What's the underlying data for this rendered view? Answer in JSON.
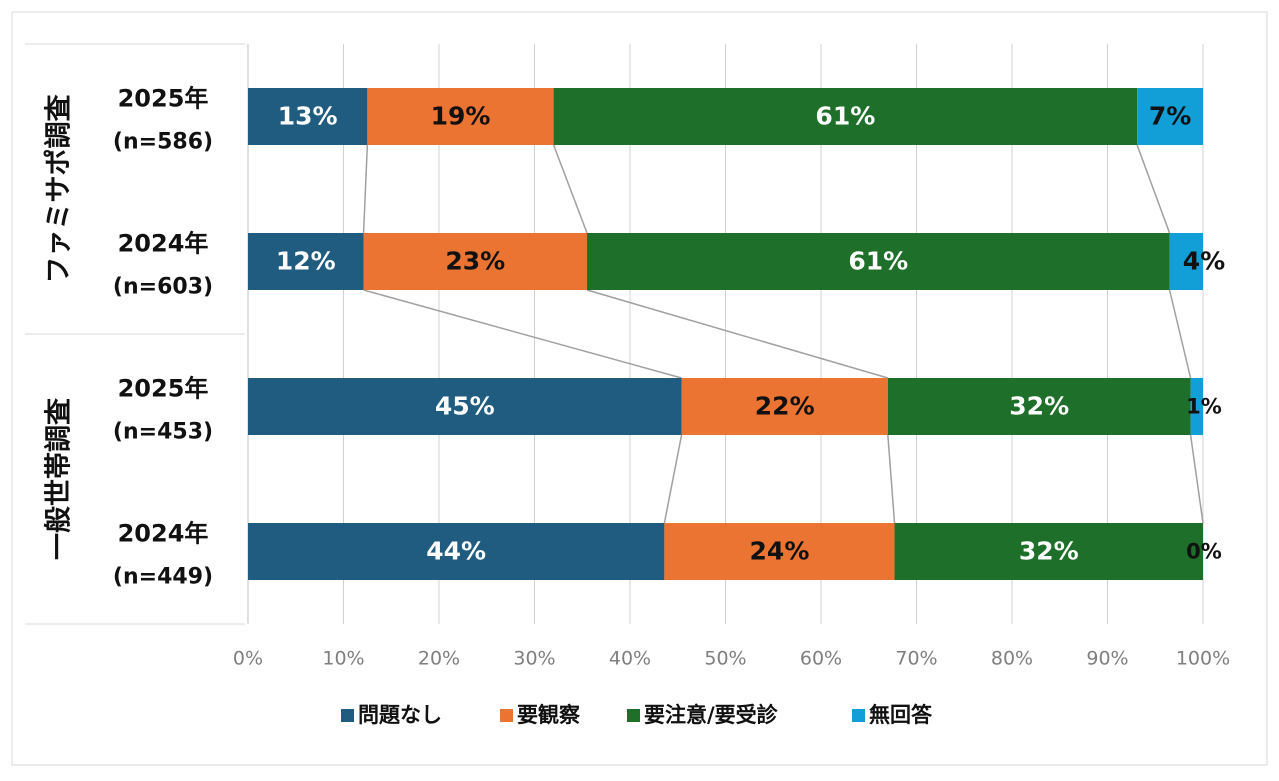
{
  "chart_data": {
    "type": "bar",
    "orientation": "horizontal",
    "stacked": true,
    "percent_stacked": true,
    "xlim": [
      0,
      100
    ],
    "x_ticks": [
      "0%",
      "10%",
      "20%",
      "30%",
      "40%",
      "50%",
      "60%",
      "70%",
      "80%",
      "90%",
      "100%"
    ],
    "grid": true,
    "legend_position": "bottom",
    "groups": [
      {
        "label": "ファミサポ調査"
      },
      {
        "label": "一般世帯調査"
      }
    ],
    "categories": [
      {
        "year": "2025年",
        "n": "(n=586)"
      },
      {
        "year": "2024年",
        "n": "(n=603)"
      },
      {
        "year": "2025年",
        "n": "(n=453)"
      },
      {
        "year": "2024年",
        "n": "(n=449)"
      }
    ],
    "series": [
      {
        "name": "問題なし",
        "color": "#1f5c80",
        "label_color": "#ffffff",
        "values": [
          12.5,
          12.1,
          45.4,
          43.6
        ],
        "labels": [
          "13%",
          "12%",
          "45%",
          "44%"
        ]
      },
      {
        "name": "要観察",
        "color": "#ec7433",
        "label_color": "#111111",
        "values": [
          19.5,
          23.4,
          21.6,
          24.1
        ],
        "labels": [
          "19%",
          "23%",
          "22%",
          "24%"
        ]
      },
      {
        "name": "要注意/要受診",
        "color": "#1e6f2a",
        "label_color": "#ffffff",
        "values": [
          61.1,
          61.0,
          31.7,
          32.3
        ],
        "labels": [
          "61%",
          "61%",
          "32%",
          "32%"
        ]
      },
      {
        "name": "無回答",
        "color": "#129ed6",
        "label_color": "#111111",
        "values": [
          6.9,
          3.5,
          1.3,
          0
        ],
        "labels": [
          "7%",
          "4%",
          "1%",
          "0%"
        ]
      }
    ]
  }
}
